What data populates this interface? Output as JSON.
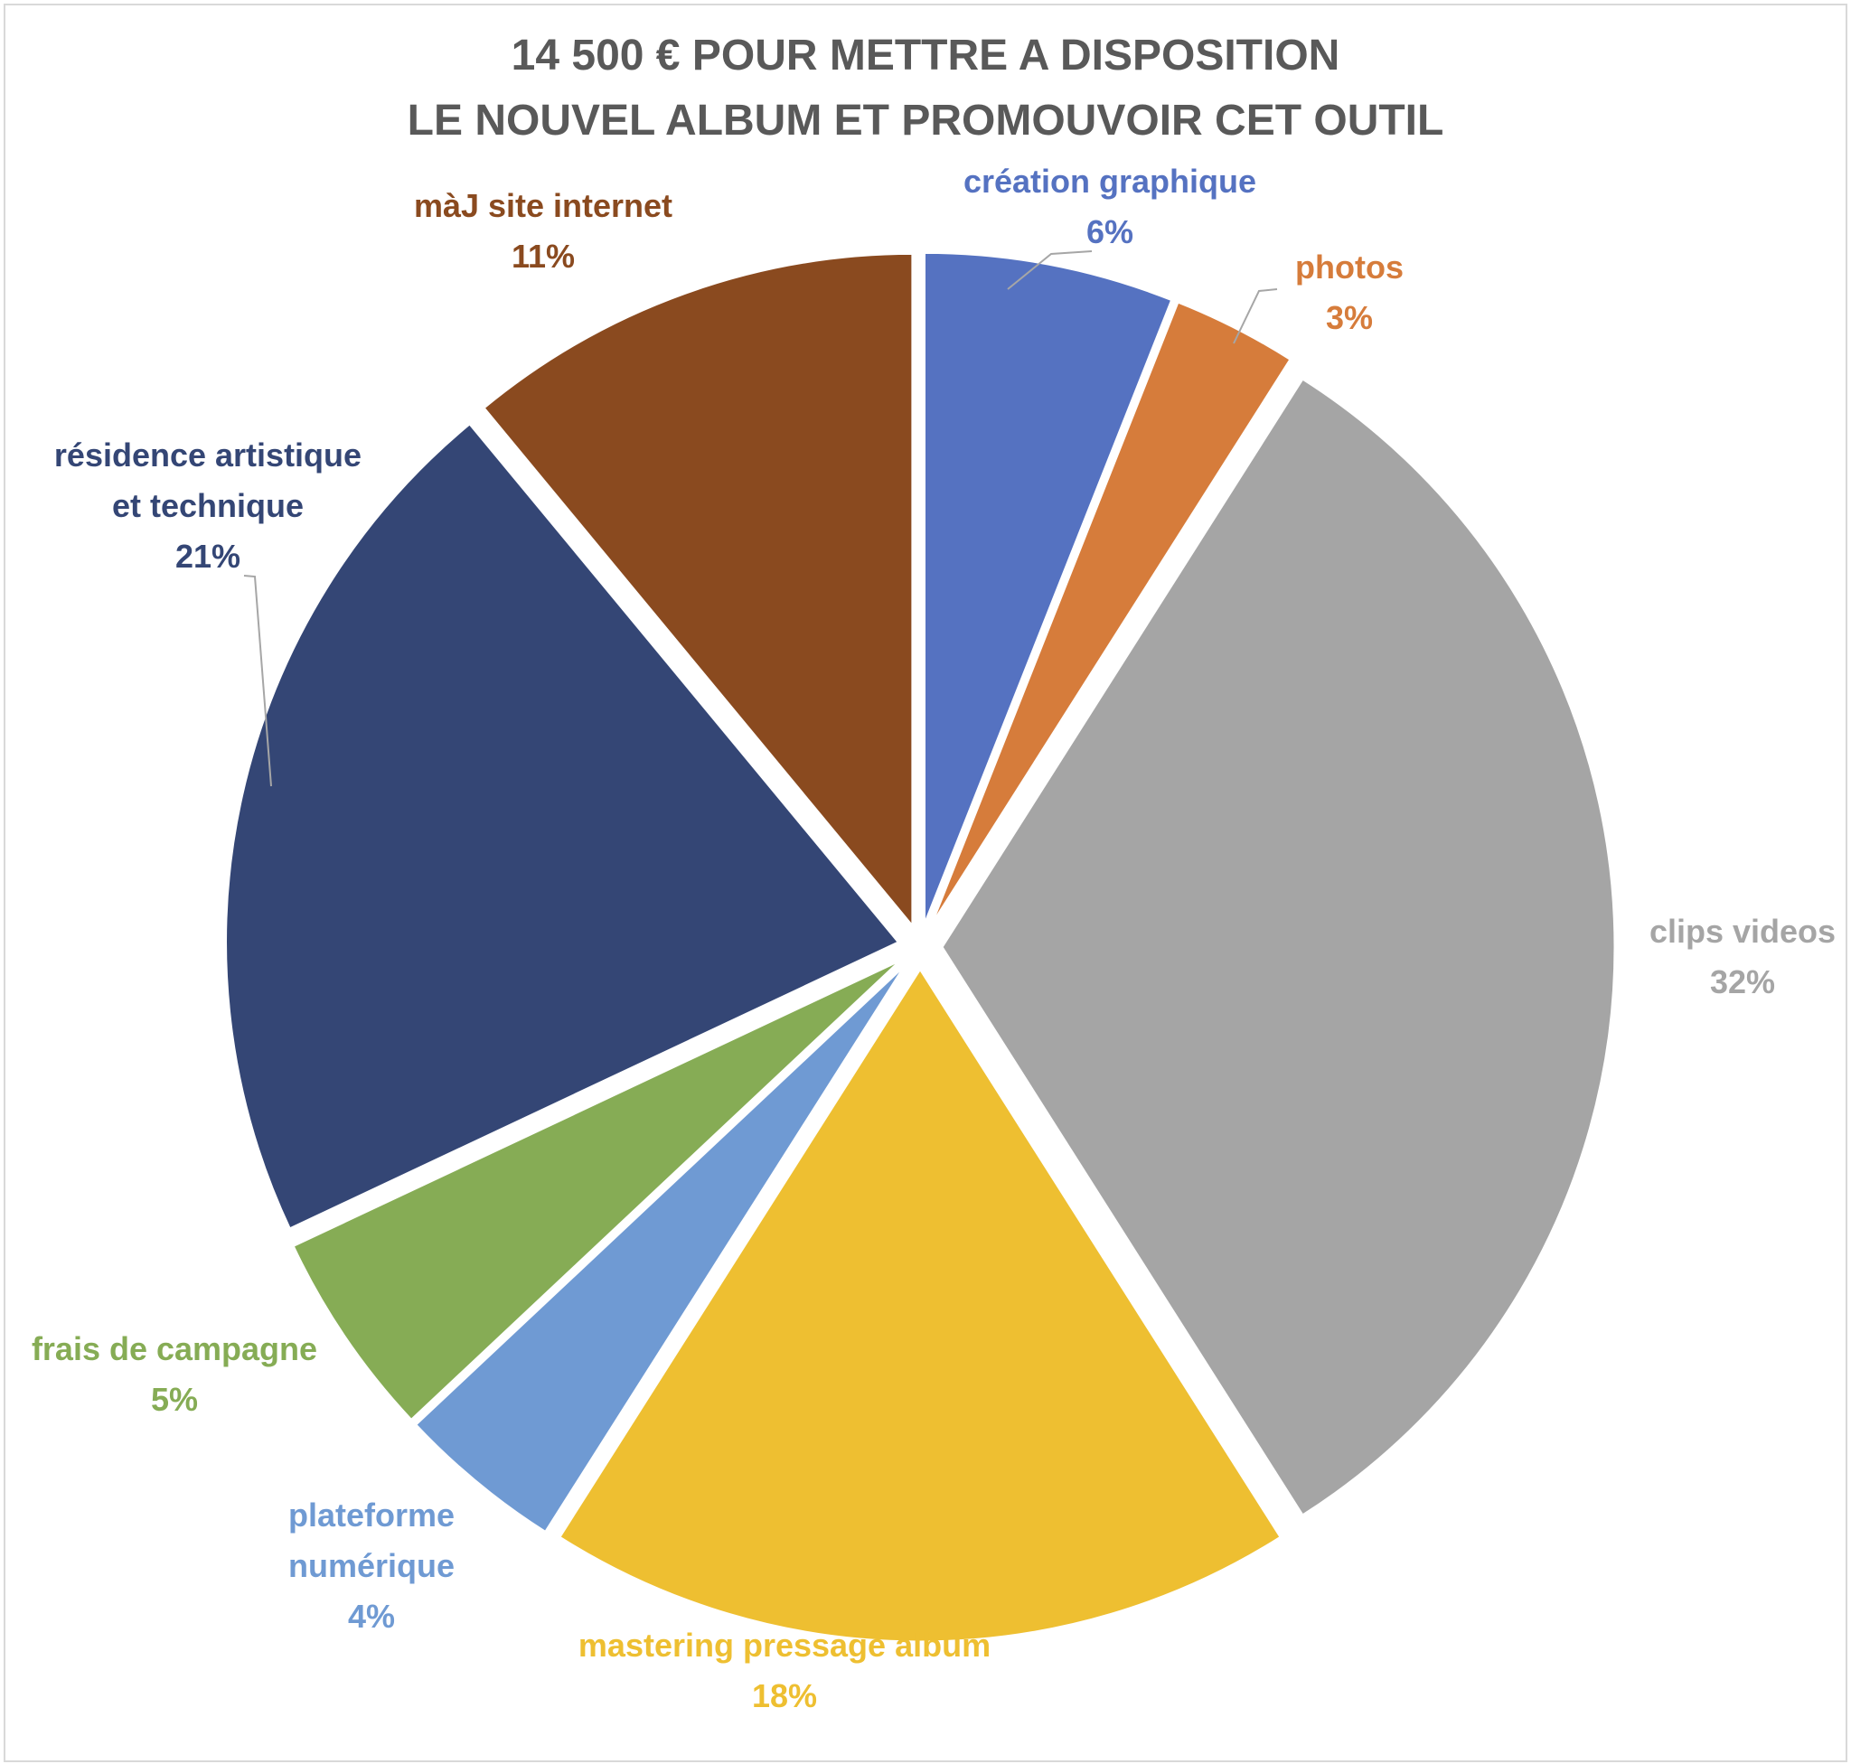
{
  "chart_data": {
    "type": "pie",
    "title": [
      "14 500 € POUR METTRE A DISPOSITION",
      "LE NOUVEL ALBUM ET PROMOUVOIR CET OUTIL"
    ],
    "slices": [
      {
        "label": [
          "création graphique"
        ],
        "value": 6,
        "value_label": "6%",
        "color": "#5572c1"
      },
      {
        "label": [
          "photos"
        ],
        "value": 3,
        "value_label": "3%",
        "color": "#d67c3b"
      },
      {
        "label": [
          "clips videos"
        ],
        "value": 32,
        "value_label": "32%",
        "color": "#a5a5a5"
      },
      {
        "label": [
          "mastering pressage album"
        ],
        "value": 18,
        "value_label": "18%",
        "color": "#eebf31"
      },
      {
        "label": [
          "plateforme",
          "numérique"
        ],
        "value": 4,
        "value_label": "4%",
        "color": "#6f9ad3"
      },
      {
        "label": [
          "frais de campagne"
        ],
        "value": 5,
        "value_label": "5%",
        "color": "#86ac55"
      },
      {
        "label": [
          "résidence artistique",
          "et technique"
        ],
        "value": 21,
        "value_label": "21%",
        "color": "#344675"
      },
      {
        "label": [
          "màJ site internet"
        ],
        "value": 11,
        "value_label": "11%",
        "color": "#8a4a1f"
      }
    ],
    "legend": "none",
    "exploded": true
  }
}
